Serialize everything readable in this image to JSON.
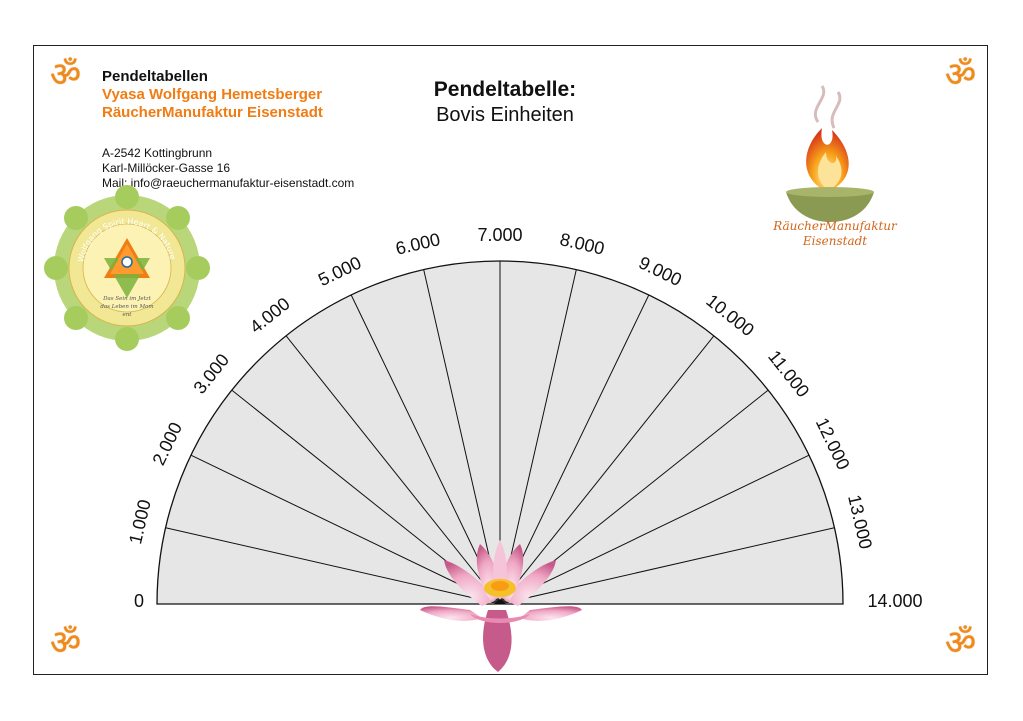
{
  "header": {
    "heading": "Pendeltabellen",
    "author": "Vyasa Wolfgang Hemetsberger",
    "company": "RäucherManufaktur Eisenstadt"
  },
  "address": {
    "line1": "A-2542 Kottingbrunn",
    "line2": "Karl-Millöcker-Gasse 16",
    "line3": "Mail: info@raeuchermanufaktur-eisenstadt.com"
  },
  "title": "Pendeltabelle:",
  "subtitle": "Bovis Einheiten",
  "om_symbol": "ॐ",
  "seal": {
    "arc_text": "Wolfgang Spirit Heart & Nature",
    "motto_1": "Das Sein im Jetzt",
    "motto_2": "das Leben im Mom",
    "motto_3": "ent"
  },
  "brand": {
    "name_line1": "RäucherManufaktur",
    "name_line2": "Eisenstadt"
  },
  "colors": {
    "accent": "#f07d14",
    "fan_fill": "#e6e6e6",
    "brand_text": "#d2651a"
  },
  "chart_data": {
    "type": "pendulum-fan",
    "labels": [
      "0",
      "1.000",
      "2.000",
      "3.000",
      "4.000",
      "5.000",
      "6.000",
      "7.000",
      "8.000",
      "9.000",
      "10.000",
      "11.000",
      "12.000",
      "13.000",
      "14.000"
    ],
    "sectors": 14,
    "range": [
      0,
      14000
    ]
  }
}
